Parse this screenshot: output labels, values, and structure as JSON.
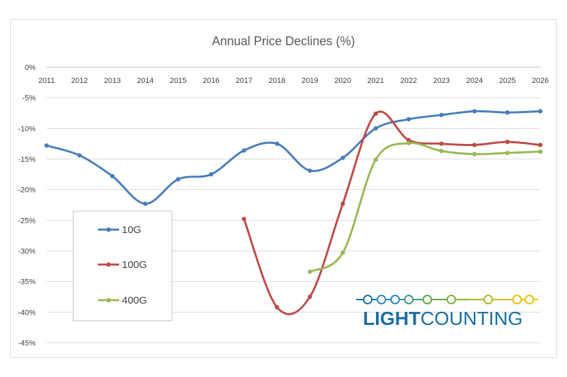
{
  "chart_data": {
    "type": "line",
    "title": "Annual Price Declines (%)",
    "xlabel": "",
    "ylabel": "",
    "x": [
      2011,
      2012,
      2013,
      2014,
      2015,
      2016,
      2017,
      2018,
      2019,
      2020,
      2021,
      2022,
      2023,
      2024,
      2025,
      2026
    ],
    "ylim": [
      -45,
      0
    ],
    "yticks": [
      0,
      -5,
      -10,
      -15,
      -20,
      -25,
      -30,
      -35,
      -40,
      -45
    ],
    "ytick_labels": [
      "0%",
      "-5%",
      "-10%",
      "-15%",
      "-20%",
      "-25%",
      "-30%",
      "-35%",
      "-40%",
      "-45%"
    ],
    "grid": true,
    "legend_position": "left-middle",
    "series": [
      {
        "name": "10G",
        "color": "#4a7ebb",
        "x": [
          2011,
          2012,
          2013,
          2014,
          2015,
          2016,
          2017,
          2018,
          2019,
          2020,
          2021,
          2022,
          2023,
          2024,
          2025,
          2026
        ],
        "values": [
          -12.8,
          -14.4,
          -17.8,
          -22.3,
          -18.3,
          -17.5,
          -13.6,
          -12.5,
          -16.9,
          -14.8,
          -10.0,
          -8.5,
          -7.8,
          -7.2,
          -7.4,
          -7.2
        ]
      },
      {
        "name": "100G",
        "color": "#be4b48",
        "x": [
          2017,
          2018,
          2019,
          2020,
          2021,
          2022,
          2023,
          2024,
          2025,
          2026
        ],
        "values": [
          -24.8,
          -39.2,
          -37.5,
          -22.3,
          -7.6,
          -11.9,
          -12.5,
          -12.7,
          -12.2,
          -12.7
        ]
      },
      {
        "name": "400G",
        "color": "#98b954",
        "x": [
          2019,
          2020,
          2021,
          2022,
          2023,
          2024,
          2025,
          2026
        ],
        "values": [
          -33.4,
          -30.3,
          -15.1,
          -12.4,
          -13.7,
          -14.2,
          -14.0,
          -13.8
        ]
      }
    ]
  },
  "logo": {
    "text_bold": "LIGHT",
    "text_regular": "COUNTING",
    "colors": [
      "#1a6fa6",
      "#2a86b8",
      "#3a9a7c",
      "#5aa84a",
      "#7cb23a",
      "#a8b81e",
      "#d4bd10",
      "#e8c10a"
    ]
  }
}
